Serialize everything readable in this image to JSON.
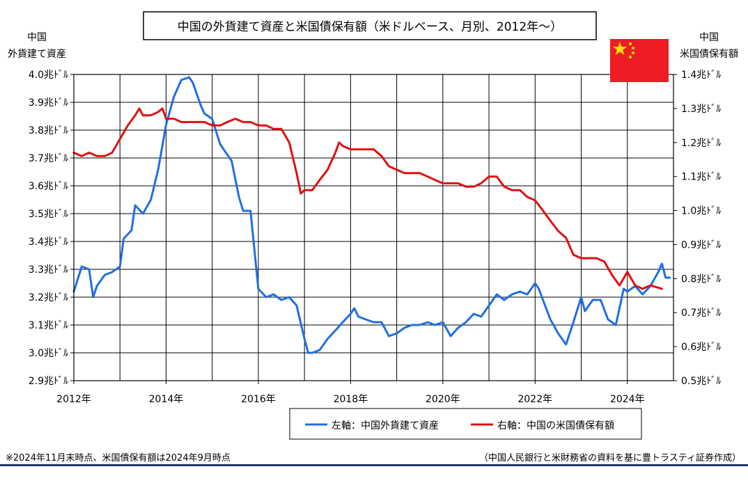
{
  "chart_data": {
    "type": "line",
    "title": "中国の外貨建て資産と米国債保有額（米ドルベース、月別、2012年～）",
    "left_axis_label_line1": "中国",
    "left_axis_label_line2": "外貨建て資産",
    "right_axis_label_line1": "中国",
    "right_axis_label_line2": "米国債保有額",
    "x_ticks": [
      "2012年",
      "2014年",
      "2016年",
      "2018年",
      "2020年",
      "2022年",
      "2024年"
    ],
    "x_tick_values": [
      2012,
      2014,
      2016,
      2018,
      2020,
      2022,
      2024
    ],
    "xlim": [
      2012,
      2025.0
    ],
    "left_ylim": [
      2.9,
      4.0
    ],
    "right_ylim": [
      0.5,
      1.4
    ],
    "left_ticks": [
      "4.0兆ﾄﾞﾙ",
      "3.9兆ﾄﾞﾙ",
      "3.8兆ﾄﾞﾙ",
      "3.7兆ﾄﾞﾙ",
      "3.6兆ﾄﾞﾙ",
      "3.5兆ﾄﾞﾙ",
      "3.4兆ﾄﾞﾙ",
      "3.3兆ﾄﾞﾙ",
      "3.2兆ﾄﾞﾙ",
      "3.1兆ﾄﾞﾙ",
      "3.0兆ﾄﾞﾙ",
      "2.9兆ﾄﾞﾙ"
    ],
    "right_ticks": [
      "1.4兆ﾄﾞﾙ",
      "1.3兆ﾄﾞﾙ",
      "1.2兆ﾄﾞﾙ",
      "1.1兆ﾄﾞﾙ",
      "1.0兆ﾄﾞﾙ",
      "0.9兆ﾄﾞﾙ",
      "0.8兆ﾄﾞﾙ",
      "0.7兆ﾄﾞﾙ",
      "0.6兆ﾄﾞﾙ",
      "0.5兆ﾄﾞﾙ"
    ],
    "grid": true,
    "legend_placement": "bottom-center",
    "series": [
      {
        "name": "左軸：中国外貨建て資産",
        "axis": "left",
        "color": "#1f6fe0",
        "points": [
          [
            2012.0,
            3.22
          ],
          [
            2012.17,
            3.31
          ],
          [
            2012.33,
            3.3
          ],
          [
            2012.42,
            3.2
          ],
          [
            2012.5,
            3.24
          ],
          [
            2012.67,
            3.28
          ],
          [
            2012.83,
            3.29
          ],
          [
            2013.0,
            3.31
          ],
          [
            2013.08,
            3.41
          ],
          [
            2013.25,
            3.44
          ],
          [
            2013.33,
            3.53
          ],
          [
            2013.5,
            3.5
          ],
          [
            2013.67,
            3.55
          ],
          [
            2013.83,
            3.66
          ],
          [
            2014.0,
            3.82
          ],
          [
            2014.17,
            3.92
          ],
          [
            2014.33,
            3.98
          ],
          [
            2014.5,
            3.99
          ],
          [
            2014.58,
            3.97
          ],
          [
            2014.75,
            3.89
          ],
          [
            2014.83,
            3.86
          ],
          [
            2015.0,
            3.84
          ],
          [
            2015.17,
            3.75
          ],
          [
            2015.25,
            3.73
          ],
          [
            2015.42,
            3.69
          ],
          [
            2015.58,
            3.56
          ],
          [
            2015.67,
            3.51
          ],
          [
            2015.83,
            3.51
          ],
          [
            2016.0,
            3.23
          ],
          [
            2016.17,
            3.2
          ],
          [
            2016.33,
            3.21
          ],
          [
            2016.5,
            3.19
          ],
          [
            2016.67,
            3.2
          ],
          [
            2016.83,
            3.17
          ],
          [
            2017.0,
            3.05
          ],
          [
            2017.08,
            3.0
          ],
          [
            2017.17,
            3.0
          ],
          [
            2017.33,
            3.01
          ],
          [
            2017.5,
            3.05
          ],
          [
            2017.67,
            3.08
          ],
          [
            2017.83,
            3.11
          ],
          [
            2018.0,
            3.14
          ],
          [
            2018.08,
            3.16
          ],
          [
            2018.17,
            3.13
          ],
          [
            2018.33,
            3.12
          ],
          [
            2018.5,
            3.11
          ],
          [
            2018.67,
            3.11
          ],
          [
            2018.83,
            3.06
          ],
          [
            2019.0,
            3.07
          ],
          [
            2019.17,
            3.09
          ],
          [
            2019.33,
            3.1
          ],
          [
            2019.5,
            3.1
          ],
          [
            2019.67,
            3.11
          ],
          [
            2019.83,
            3.1
          ],
          [
            2020.0,
            3.11
          ],
          [
            2020.17,
            3.06
          ],
          [
            2020.33,
            3.09
          ],
          [
            2020.5,
            3.11
          ],
          [
            2020.67,
            3.14
          ],
          [
            2020.83,
            3.13
          ],
          [
            2021.0,
            3.17
          ],
          [
            2021.17,
            3.21
          ],
          [
            2021.33,
            3.19
          ],
          [
            2021.5,
            3.21
          ],
          [
            2021.67,
            3.22
          ],
          [
            2021.83,
            3.21
          ],
          [
            2022.0,
            3.25
          ],
          [
            2022.08,
            3.23
          ],
          [
            2022.17,
            3.19
          ],
          [
            2022.33,
            3.12
          ],
          [
            2022.5,
            3.07
          ],
          [
            2022.67,
            3.03
          ],
          [
            2022.83,
            3.11
          ],
          [
            2023.0,
            3.2
          ],
          [
            2023.08,
            3.15
          ],
          [
            2023.25,
            3.19
          ],
          [
            2023.42,
            3.19
          ],
          [
            2023.58,
            3.12
          ],
          [
            2023.75,
            3.1
          ],
          [
            2023.92,
            3.23
          ],
          [
            2024.0,
            3.22
          ],
          [
            2024.17,
            3.24
          ],
          [
            2024.33,
            3.21
          ],
          [
            2024.5,
            3.24
          ],
          [
            2024.67,
            3.29
          ],
          [
            2024.75,
            3.32
          ],
          [
            2024.83,
            3.27
          ],
          [
            2024.92,
            3.27
          ]
        ]
      },
      {
        "name": "右軸：中国の米国債保有額",
        "axis": "right",
        "color": "#e01010",
        "points": [
          [
            2012.0,
            1.17
          ],
          [
            2012.17,
            1.16
          ],
          [
            2012.33,
            1.17
          ],
          [
            2012.5,
            1.16
          ],
          [
            2012.67,
            1.16
          ],
          [
            2012.83,
            1.17
          ],
          [
            2013.0,
            1.21
          ],
          [
            2013.17,
            1.25
          ],
          [
            2013.33,
            1.28
          ],
          [
            2013.42,
            1.3
          ],
          [
            2013.5,
            1.28
          ],
          [
            2013.67,
            1.28
          ],
          [
            2013.83,
            1.29
          ],
          [
            2013.92,
            1.3
          ],
          [
            2014.0,
            1.27
          ],
          [
            2014.17,
            1.27
          ],
          [
            2014.33,
            1.26
          ],
          [
            2014.5,
            1.26
          ],
          [
            2014.67,
            1.26
          ],
          [
            2014.83,
            1.26
          ],
          [
            2015.0,
            1.25
          ],
          [
            2015.17,
            1.25
          ],
          [
            2015.33,
            1.26
          ],
          [
            2015.5,
            1.27
          ],
          [
            2015.67,
            1.26
          ],
          [
            2015.83,
            1.26
          ],
          [
            2016.0,
            1.25
          ],
          [
            2016.17,
            1.25
          ],
          [
            2016.33,
            1.24
          ],
          [
            2016.5,
            1.24
          ],
          [
            2016.67,
            1.2
          ],
          [
            2016.83,
            1.11
          ],
          [
            2016.92,
            1.05
          ],
          [
            2017.0,
            1.06
          ],
          [
            2017.17,
            1.06
          ],
          [
            2017.33,
            1.09
          ],
          [
            2017.5,
            1.12
          ],
          [
            2017.67,
            1.17
          ],
          [
            2017.75,
            1.2
          ],
          [
            2017.83,
            1.19
          ],
          [
            2018.0,
            1.18
          ],
          [
            2018.17,
            1.18
          ],
          [
            2018.33,
            1.18
          ],
          [
            2018.5,
            1.18
          ],
          [
            2018.67,
            1.16
          ],
          [
            2018.83,
            1.13
          ],
          [
            2019.0,
            1.12
          ],
          [
            2019.17,
            1.11
          ],
          [
            2019.33,
            1.11
          ],
          [
            2019.5,
            1.11
          ],
          [
            2019.67,
            1.1
          ],
          [
            2019.83,
            1.09
          ],
          [
            2020.0,
            1.08
          ],
          [
            2020.17,
            1.08
          ],
          [
            2020.33,
            1.08
          ],
          [
            2020.5,
            1.07
          ],
          [
            2020.67,
            1.07
          ],
          [
            2020.83,
            1.08
          ],
          [
            2021.0,
            1.1
          ],
          [
            2021.17,
            1.1
          ],
          [
            2021.33,
            1.07
          ],
          [
            2021.5,
            1.06
          ],
          [
            2021.67,
            1.06
          ],
          [
            2021.83,
            1.04
          ],
          [
            2022.0,
            1.03
          ],
          [
            2022.17,
            1.0
          ],
          [
            2022.33,
            0.97
          ],
          [
            2022.5,
            0.94
          ],
          [
            2022.67,
            0.92
          ],
          [
            2022.83,
            0.87
          ],
          [
            2023.0,
            0.86
          ],
          [
            2023.17,
            0.86
          ],
          [
            2023.33,
            0.86
          ],
          [
            2023.5,
            0.85
          ],
          [
            2023.67,
            0.81
          ],
          [
            2023.83,
            0.78
          ],
          [
            2024.0,
            0.82
          ],
          [
            2024.17,
            0.78
          ],
          [
            2024.33,
            0.77
          ],
          [
            2024.5,
            0.78
          ],
          [
            2024.75,
            0.77
          ]
        ]
      }
    ]
  },
  "flag_icon": "china-flag-icon",
  "footnote_left": "※2024年11月末時点、米国債保有額は2024年9月時点",
  "footnote_right": "（中国人民銀行と米財務省の資料を基に豊トラスティ証券作成）",
  "colors": {
    "footer_rule": "#1f3864",
    "flag_red": "#ee1c25",
    "flag_yellow": "#ffde00"
  }
}
